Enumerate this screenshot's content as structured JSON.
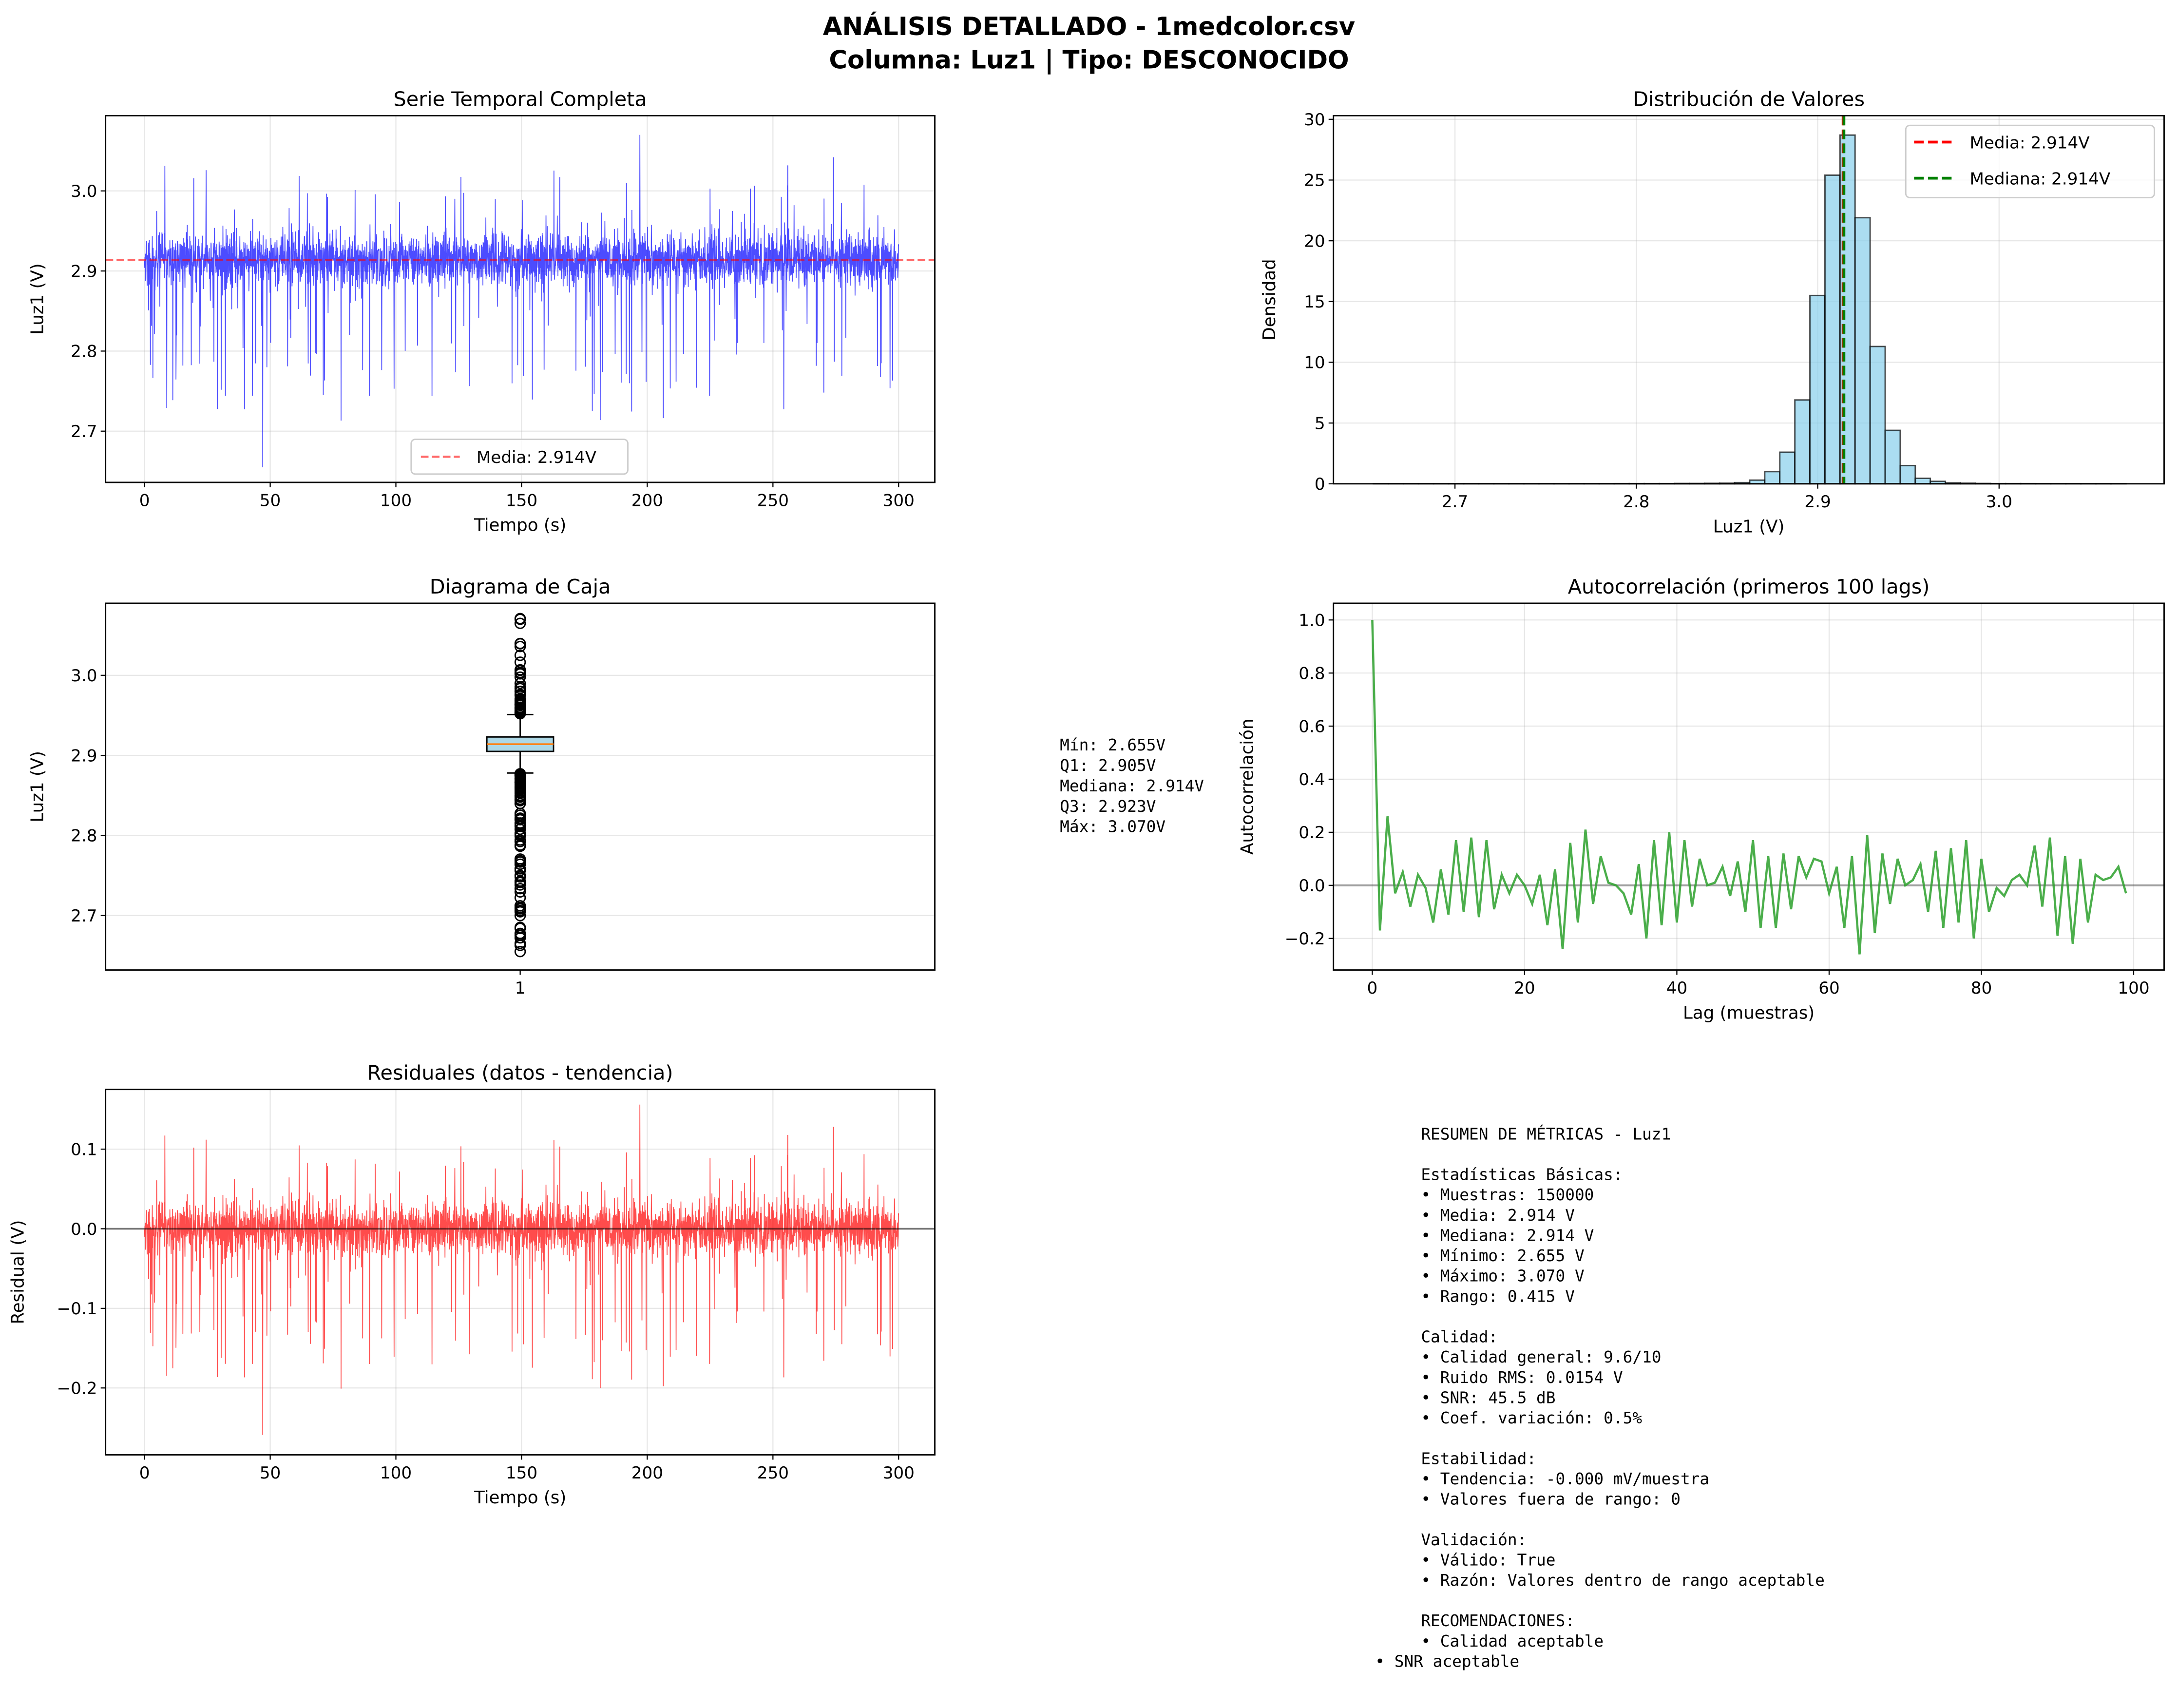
{
  "title": {
    "line1": "ANÁLISIS DETALLADO - 1medcolor.csv",
    "line2": "Columna: Luz1 | Tipo: DESCONOCIDO"
  },
  "colors": {
    "series_blue": "#0000ff",
    "mean_red": "#ff0000",
    "median_green": "#008000",
    "hist_fill": "#87ceeb",
    "acf_green": "#2ca02c",
    "residual_red": "#ff0000",
    "box_fill": "#add8e6",
    "box_median": "#ff7f0e"
  },
  "chart_data": [
    {
      "type": "line",
      "title": "Serie Temporal Completa",
      "xlabel": "Tiempo (s)",
      "ylabel": "Luz1 (V)",
      "xlim": [
        -15.5,
        314.4
      ],
      "ylim": [
        2.636,
        3.094
      ],
      "xticklabels": [
        "0",
        "50",
        "100",
        "150",
        "200",
        "250",
        "300"
      ],
      "yticklabels": [
        "2.7",
        "2.8",
        "2.9",
        "3.0"
      ],
      "grid": true,
      "x_range": [
        0,
        300
      ],
      "samples": 150000,
      "y_mean": 2.914,
      "y_min": 2.655,
      "y_max": 3.07,
      "noise_rms": 0.0154,
      "hline": {
        "value": 2.914,
        "label": "Media: 2.914V"
      },
      "legend": {
        "placement": "lower center",
        "entries": [
          "Media: 2.914V"
        ]
      }
    },
    {
      "type": "bar",
      "subtype": "histogram",
      "title": "Distribución de Valores",
      "xlabel": "Luz1 (V)",
      "ylabel": "Densidad",
      "xlim": [
        2.633,
        3.091
      ],
      "ylim": [
        0,
        30.3
      ],
      "xticklabels": [
        "2.7",
        "2.8",
        "2.9",
        "3.0"
      ],
      "yticklabels": [
        "0",
        "5",
        "10",
        "15",
        "20",
        "25",
        "30"
      ],
      "grid": true,
      "bin_start": 2.655,
      "bin_width": 0.0083,
      "values": [
        0.01,
        0.01,
        0.01,
        0.01,
        0.01,
        0.01,
        0.01,
        0.01,
        0.01,
        0.01,
        0.01,
        0.01,
        0.01,
        0.01,
        0.01,
        0.01,
        0.02,
        0.02,
        0.02,
        0.02,
        0.03,
        0.03,
        0.04,
        0.05,
        0.1,
        0.3,
        1.0,
        2.6,
        6.9,
        15.5,
        25.4,
        28.7,
        21.9,
        11.3,
        4.4,
        1.5,
        0.45,
        0.2,
        0.08,
        0.05,
        0.03,
        0.02,
        0.02,
        0.02,
        0.01,
        0.01,
        0.01,
        0.01,
        0.01,
        0.01
      ],
      "vlines": [
        {
          "value": 2.914,
          "label": "Media: 2.914V",
          "color": "#ff0000"
        },
        {
          "value": 2.914,
          "label": "Mediana: 2.914V",
          "color": "#008000"
        }
      ],
      "legend": {
        "placement": "upper right",
        "entries": [
          "Media: 2.914V",
          "Mediana: 2.914V"
        ]
      }
    },
    {
      "type": "box",
      "title": "Diagrama de Caja",
      "ylabel": "Luz1 (V)",
      "ylim": [
        2.632,
        3.09
      ],
      "xticklabels": [
        "1"
      ],
      "yticklabels": [
        "2.7",
        "2.8",
        "2.9",
        "3.0"
      ],
      "grid": true,
      "min": 2.655,
      "q1": 2.905,
      "median": 2.914,
      "q3": 2.923,
      "max": 3.07,
      "whisker_low": 2.878,
      "whisker_high": 2.951
    },
    {
      "type": "line",
      "title": "Autocorrelación (primeros 100 lags)",
      "xlabel": "Lag (muestras)",
      "ylabel": "Autocorrelación",
      "xlim": [
        -5.1,
        104.0
      ],
      "ylim": [
        -0.319,
        1.063
      ],
      "xticklabels": [
        "0",
        "20",
        "40",
        "60",
        "80",
        "100"
      ],
      "yticklabels": [
        "−0.2",
        "0.0",
        "0.2",
        "0.4",
        "0.6",
        "0.8",
        "1.0"
      ],
      "grid": true,
      "hline": 0,
      "values": [
        1.0,
        -0.17,
        0.26,
        -0.03,
        0.05,
        -0.08,
        0.04,
        -0.01,
        -0.14,
        0.06,
        -0.11,
        0.17,
        -0.1,
        0.18,
        -0.12,
        0.17,
        -0.09,
        0.04,
        -0.03,
        0.04,
        0.0,
        -0.07,
        0.04,
        -0.15,
        0.06,
        -0.24,
        0.16,
        -0.14,
        0.21,
        -0.07,
        0.11,
        0.01,
        0.0,
        -0.03,
        -0.11,
        0.08,
        -0.2,
        0.17,
        -0.15,
        0.2,
        -0.14,
        0.17,
        -0.08,
        0.1,
        0.0,
        0.01,
        0.07,
        -0.04,
        0.09,
        -0.1,
        0.17,
        -0.16,
        0.11,
        -0.16,
        0.12,
        -0.09,
        0.11,
        0.03,
        0.1,
        0.09,
        -0.03,
        0.07,
        -0.16,
        0.11,
        -0.26,
        0.19,
        -0.18,
        0.12,
        -0.07,
        0.1,
        0.0,
        0.02,
        0.08,
        -0.1,
        0.13,
        -0.16,
        0.14,
        -0.14,
        0.17,
        -0.2,
        0.1,
        -0.1,
        -0.01,
        -0.04,
        0.02,
        0.04,
        0.0,
        0.15,
        -0.08,
        0.18,
        -0.19,
        0.11,
        -0.22,
        0.1,
        -0.14,
        0.04,
        0.02,
        0.03,
        0.07,
        -0.03
      ]
    },
    {
      "type": "line",
      "title": "Residuales (datos - tendencia)",
      "xlabel": "Tiempo (s)",
      "ylabel": "Residual (V)",
      "xlim": [
        -15.5,
        314.4
      ],
      "ylim": [
        -0.284,
        0.175
      ],
      "xticklabels": [
        "0",
        "50",
        "100",
        "150",
        "200",
        "250",
        "300"
      ],
      "yticklabels": [
        "−0.2",
        "−0.1",
        "0.0",
        "0.1"
      ],
      "grid": true,
      "hline": 0,
      "x_range": [
        0,
        300
      ],
      "y_min": -0.259,
      "y_max": 0.156
    }
  ],
  "box_stats": {
    "lines": [
      "Mín: 2.655V",
      "Q1: 2.905V",
      "Mediana: 2.914V",
      "Q3: 2.923V",
      "Máx: 3.070V"
    ]
  },
  "summary": {
    "lines": [
      "RESUMEN DE MÉTRICAS - Luz1",
      "",
      "Estadísticas Básicas:",
      "• Muestras: 150000",
      "• Media: 2.914 V",
      "• Mediana: 2.914 V",
      "• Mínimo: 2.655 V",
      "• Máximo: 3.070 V",
      "• Rango: 0.415 V",
      "",
      "Calidad:",
      "• Calidad general: 9.6/10",
      "• Ruido RMS: 0.0154 V",
      "• SNR: 45.5 dB",
      "• Coef. variación: 0.5%",
      "",
      "Estabilidad:",
      "• Tendencia: -0.000 mV/muestra",
      "• Valores fuera de rango: 0",
      "",
      "Validación:",
      "• Válido: True",
      "• Razón: Valores dentro de rango aceptable",
      "",
      "RECOMENDACIONES:",
      "• Calidad aceptable"
    ],
    "last_line": "• SNR aceptable"
  }
}
